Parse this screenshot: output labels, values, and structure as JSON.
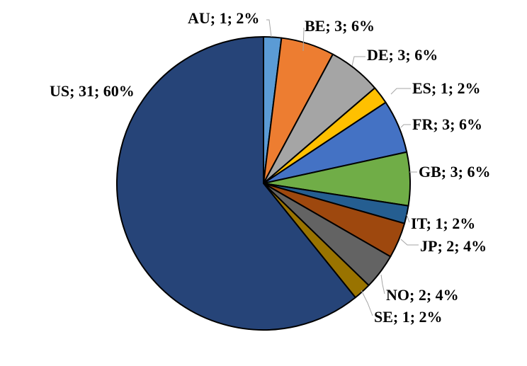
{
  "chart_data": {
    "type": "pie",
    "title": "",
    "legend": "none",
    "slices": [
      {
        "label": "AU; 1; 2%",
        "category": "AU",
        "value": 1,
        "percent": 2,
        "color": "#5b9bd5"
      },
      {
        "label": "BE; 3; 6%",
        "category": "BE",
        "value": 3,
        "percent": 6,
        "color": "#ed7d31"
      },
      {
        "label": "DE; 3; 6%",
        "category": "DE",
        "value": 3,
        "percent": 6,
        "color": "#a5a5a5"
      },
      {
        "label": "ES; 1; 2%",
        "category": "ES",
        "value": 1,
        "percent": 2,
        "color": "#ffc000"
      },
      {
        "label": "FR; 3; 6%",
        "category": "FR",
        "value": 3,
        "percent": 6,
        "color": "#4472c4"
      },
      {
        "label": "GB; 3; 6%",
        "category": "GB",
        "value": 3,
        "percent": 6,
        "color": "#70ad47"
      },
      {
        "label": "IT; 1; 2%",
        "category": "IT",
        "value": 1,
        "percent": 2,
        "color": "#255e91"
      },
      {
        "label": "JP; 2; 4%",
        "category": "JP",
        "value": 2,
        "percent": 4,
        "color": "#9e480e"
      },
      {
        "label": "NO; 2; 4%",
        "category": "NO",
        "value": 2,
        "percent": 4,
        "color": "#636363"
      },
      {
        "label": "SE; 1; 2%",
        "category": "SE",
        "value": 1,
        "percent": 2,
        "color": "#997300"
      },
      {
        "label": "US; 31; 60%",
        "category": "US",
        "value": 31,
        "percent": 60,
        "color": "#264478"
      }
    ]
  }
}
